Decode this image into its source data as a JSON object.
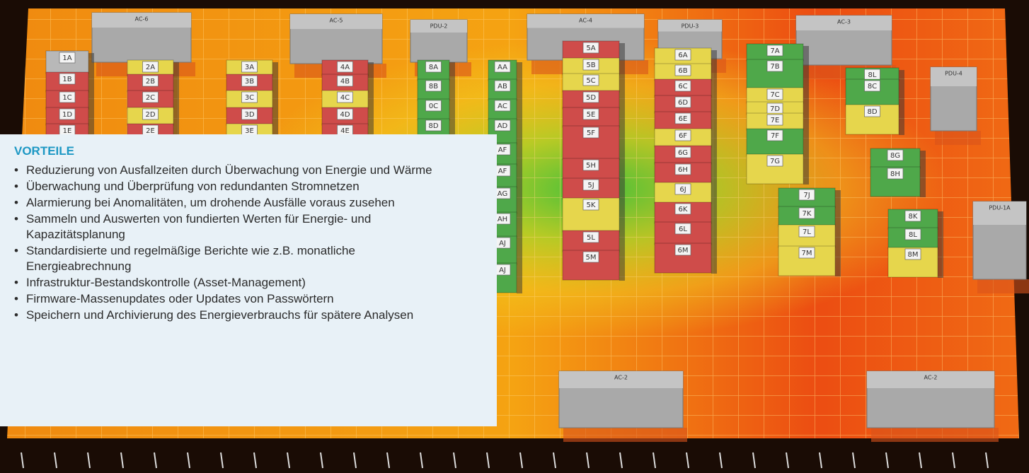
{
  "floor": {
    "units": [
      {
        "label": "AC-6"
      },
      {
        "label": "AC-5"
      },
      {
        "label": "PDU-2"
      },
      {
        "label": "AC-4"
      },
      {
        "label": "PDU-3"
      },
      {
        "label": "AC-3"
      },
      {
        "label": "PDU-4"
      },
      {
        "label": "AC-2"
      },
      {
        "label": "AC-2"
      },
      {
        "label": "PDU-1A"
      }
    ],
    "rows": [
      {
        "racks": [
          {
            "label": "1A",
            "color": "#b8b8b8"
          },
          {
            "label": "1B",
            "color": "#cf4c4a"
          },
          {
            "label": "1C",
            "color": "#cf4c4a"
          },
          {
            "label": "1D",
            "color": "#cf4c4a"
          },
          {
            "label": "1E",
            "color": "#cf4c4a"
          }
        ]
      },
      {
        "racks": [
          {
            "label": "2A",
            "color": "#e6d64c"
          },
          {
            "label": "2B",
            "color": "#cf4c4a"
          },
          {
            "label": "2C",
            "color": "#cf4c4a"
          },
          {
            "label": "2D",
            "color": "#e6d64c"
          },
          {
            "label": "2E",
            "color": "#cf4c4a"
          }
        ]
      },
      {
        "racks": [
          {
            "label": "3A",
            "color": "#e6d64c"
          },
          {
            "label": "3B",
            "color": "#cf4c4a"
          },
          {
            "label": "3C",
            "color": "#e6d64c"
          },
          {
            "label": "3D",
            "color": "#cf4c4a"
          },
          {
            "label": "3E",
            "color": "#e6d64c"
          }
        ]
      },
      {
        "racks": [
          {
            "label": "4A",
            "color": "#cf4c4a"
          },
          {
            "label": "4B",
            "color": "#cf4c4a"
          },
          {
            "label": "4C",
            "color": "#e6d64c"
          },
          {
            "label": "4D",
            "color": "#cf4c4a"
          },
          {
            "label": "4E",
            "color": "#cf4c4a"
          }
        ]
      },
      {
        "racks": [
          {
            "label": "8A",
            "color": "#4fa84a"
          },
          {
            "label": "8B",
            "color": "#4fa84a"
          },
          {
            "label": "0C",
            "color": "#4fa84a"
          },
          {
            "label": "8D",
            "color": "#4fa84a"
          }
        ]
      },
      {
        "racks": [
          {
            "label": "AA",
            "color": "#4fa84a"
          },
          {
            "label": "AB",
            "color": "#4fa84a"
          },
          {
            "label": "AC",
            "color": "#4fa84a"
          },
          {
            "label": "AD",
            "color": "#4fa84a"
          },
          {
            "label": "AF",
            "color": "#4fa84a"
          },
          {
            "label": "AF",
            "color": "#4fa84a"
          },
          {
            "label": "AG",
            "color": "#4fa84a"
          },
          {
            "label": "AH",
            "color": "#4fa84a"
          },
          {
            "label": "AJ",
            "color": "#4fa84a"
          },
          {
            "label": "AJ",
            "color": "#4fa84a"
          }
        ]
      },
      {
        "racks": [
          {
            "label": "5A",
            "color": "#cf4c4a"
          },
          {
            "label": "5B",
            "color": "#e6d64c"
          },
          {
            "label": "5C",
            "color": "#e6d64c"
          },
          {
            "label": "5D",
            "color": "#cf4c4a"
          },
          {
            "label": "5E",
            "color": "#cf4c4a"
          },
          {
            "label": "5F",
            "color": "#cf4c4a"
          },
          {
            "label": "5H",
            "color": "#cf4c4a"
          },
          {
            "label": "5J",
            "color": "#cf4c4a"
          },
          {
            "label": "5K",
            "color": "#e6d64c"
          },
          {
            "label": "5L",
            "color": "#cf4c4a"
          },
          {
            "label": "5M",
            "color": "#cf4c4a"
          }
        ]
      },
      {
        "racks": [
          {
            "label": "6A",
            "color": "#e6d64c"
          },
          {
            "label": "6B",
            "color": "#e6d64c"
          },
          {
            "label": "6C",
            "color": "#cf4c4a"
          },
          {
            "label": "6D",
            "color": "#cf4c4a"
          },
          {
            "label": "6E",
            "color": "#cf4c4a"
          },
          {
            "label": "6F",
            "color": "#e6d64c"
          },
          {
            "label": "6G",
            "color": "#cf4c4a"
          },
          {
            "label": "6H",
            "color": "#cf4c4a"
          },
          {
            "label": "6J",
            "color": "#e6d64c"
          },
          {
            "label": "6K",
            "color": "#cf4c4a"
          },
          {
            "label": "6L",
            "color": "#cf4c4a"
          },
          {
            "label": "6M",
            "color": "#cf4c4a"
          }
        ]
      },
      {
        "racks": [
          {
            "label": "7A",
            "color": "#4fa84a"
          },
          {
            "label": "7B",
            "color": "#4fa84a"
          },
          {
            "label": "7C",
            "color": "#e6d64c"
          },
          {
            "label": "7D",
            "color": "#e6d64c"
          },
          {
            "label": "7E",
            "color": "#e6d64c"
          },
          {
            "label": "7F",
            "color": "#4fa84a"
          },
          {
            "label": "7G",
            "color": "#e6d64c"
          }
        ]
      },
      {
        "racks": [
          {
            "label": "7J",
            "color": "#4fa84a"
          },
          {
            "label": "7K",
            "color": "#4fa84a"
          },
          {
            "label": "7L",
            "color": "#e6d64c"
          },
          {
            "label": "7M",
            "color": "#e6d64c"
          }
        ]
      },
      {
        "racks": [
          {
            "label": "8L",
            "color": "#4fa84a"
          },
          {
            "label": "8C",
            "color": "#4fa84a"
          },
          {
            "label": "8D",
            "color": "#e6d64c"
          }
        ]
      },
      {
        "racks": [
          {
            "label": "8G",
            "color": "#4fa84a"
          },
          {
            "label": "8H",
            "color": "#4fa84a"
          }
        ]
      },
      {
        "racks": [
          {
            "label": "8K",
            "color": "#4fa84a"
          },
          {
            "label": "8L",
            "color": "#4fa84a"
          },
          {
            "label": "8M",
            "color": "#e6d64c"
          }
        ]
      }
    ]
  },
  "panel": {
    "title": "VORTEILE",
    "items": [
      "Reduzierung von Ausfallzeiten durch Überwachung von Energie und Wärme",
      "Überwachung und Überprüfung von redundanten Stromnetzen",
      "Alarmierung bei Anomalitäten, um drohende Ausfälle voraus zusehen",
      "Sammeln und Auswerten von fundierten Werten für Energie- und Kapazitätsplanung",
      "Standardisierte und regelmäßige Berichte wie z.B. monatliche Energieabrechnung",
      "Infrastruktur-Bestandskontrolle (Asset-Management)",
      "Firmware-Massenupdates oder Updates von Passwörtern",
      "Speichern und Archivierung des Energieverbrauchs für spätere Analysen"
    ]
  }
}
